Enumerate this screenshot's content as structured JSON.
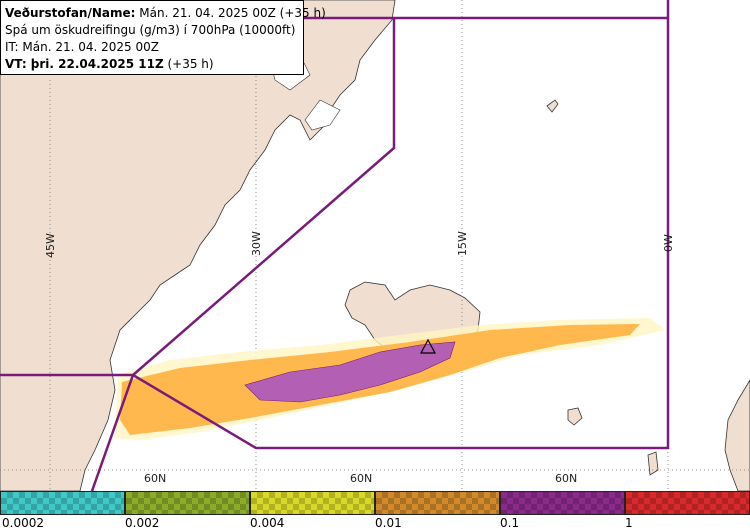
{
  "header": {
    "title_bold": "Veðurstofan/Name:",
    "title_rest": " Mán. 21. 04. 2025 00Z (+35 h)",
    "forecast": "Spá um öskudreifingu (g/m3) í 700hPa (10000ft)",
    "issue_time": "IT: Mán. 21. 04. 2025 00Z",
    "valid_bold": "VT: þri. 22.04.2025 11Z",
    "valid_rest": " (+35 h)"
  },
  "map": {
    "longitude_labels": [
      "45W",
      "30W",
      "15W",
      "0W"
    ],
    "latitude_labels": [
      "60N",
      "60N",
      "60N"
    ],
    "colors": {
      "land": "#f0dfd0",
      "sea": "#ffffff",
      "boundary": "#7a1a7a",
      "plume_low": "#ffb84d",
      "plume_high": "#b35fb3"
    }
  },
  "legend": {
    "bins": [
      {
        "color": "#40c8c8"
      },
      {
        "color": "#8aac28"
      },
      {
        "color": "#d8d82a"
      },
      {
        "color": "#d08a2a"
      },
      {
        "color": "#8a2a8a"
      },
      {
        "color": "#d82a2a"
      }
    ],
    "ticks": [
      "0.0002",
      "0.002",
      "0.004",
      "0.01",
      "0.1",
      "1"
    ]
  }
}
